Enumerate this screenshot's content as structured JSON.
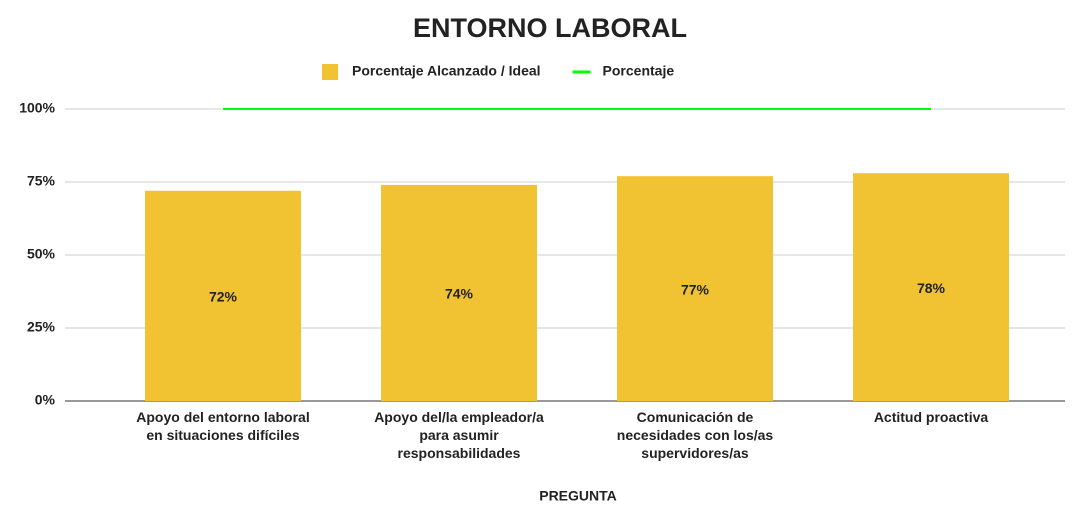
{
  "chart_data": {
    "type": "bar",
    "title": "ENTORNO LABORAL",
    "x_label": "PREGUNTA",
    "categories": [
      "Apoyo del entorno laboral\nen situaciones difíciles",
      "Apoyo del/la empleador/a\npara asumir\nresponsabilidades",
      "Comunicación de\nnecesidades con los/as\nsupervidores/as",
      "Actitud proactiva"
    ],
    "series": [
      {
        "name": "Porcentaje Alcanzado / Ideal",
        "type": "bar",
        "color": "#f1c232",
        "values": [
          72,
          74,
          77,
          78
        ],
        "value_labels": [
          "72%",
          "74%",
          "77%",
          "78%"
        ]
      },
      {
        "name": "Porcentaje",
        "type": "line",
        "color": "#00ff00",
        "values": [
          100,
          100,
          100,
          100
        ]
      }
    ],
    "ylim": [
      0,
      100
    ],
    "yticks": [
      {
        "value": 0,
        "label": "0%"
      },
      {
        "value": 25,
        "label": "25%"
      },
      {
        "value": 50,
        "label": "50%"
      },
      {
        "value": 75,
        "label": "75%"
      },
      {
        "value": 100,
        "label": "100%"
      }
    ],
    "grid": true,
    "legend": "top"
  }
}
